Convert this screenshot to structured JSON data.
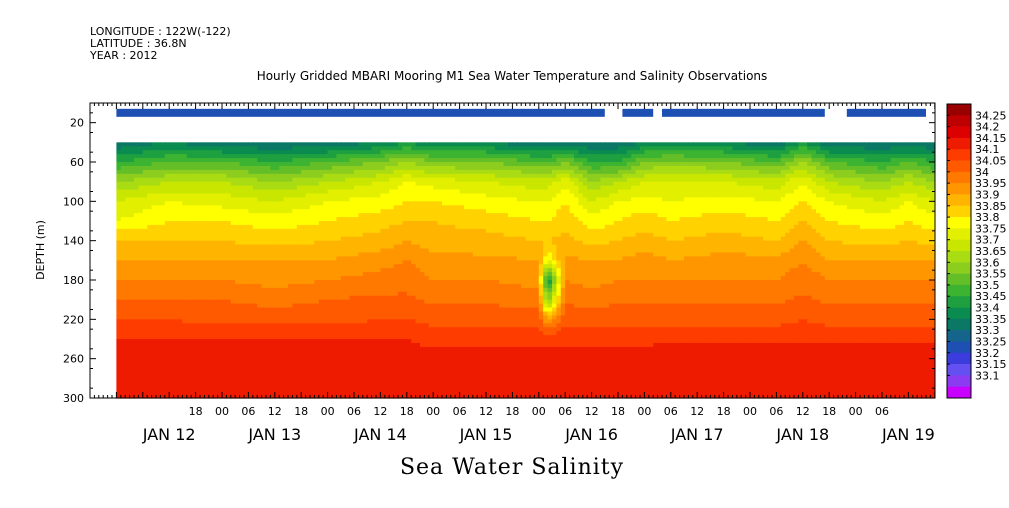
{
  "header": {
    "longitude": "LONGITUDE : 122W(-122)",
    "latitude": "LATITUDE : 36.8N",
    "year": "YEAR : 2012"
  },
  "chart_data": {
    "type": "heatmap",
    "title": "Hourly Gridded MBARI Mooring M1 Sea Water Temperature and Salinity Observations",
    "xlabel": "Sea Water Salinity",
    "ylabel": "DEPTH (m)",
    "x_range_hours": [
      -12,
      180
    ],
    "x_axis_start": "2012-01-12 06:00",
    "x_tick_labels": [
      "18",
      "00",
      "06",
      "12",
      "18",
      "00",
      "06",
      "12",
      "18",
      "00",
      "06",
      "12",
      "18",
      "00",
      "06",
      "12",
      "18",
      "00",
      "06",
      "12",
      "18",
      "00",
      "06",
      "12",
      "18",
      "00",
      "06"
    ],
    "x_day_labels": [
      "JAN 12",
      "JAN 13",
      "JAN 14",
      "JAN 15",
      "JAN 16",
      "JAN 17",
      "JAN 18",
      "JAN 19"
    ],
    "y_range": [
      300,
      0
    ],
    "y_ticks": [
      20,
      60,
      100,
      140,
      180,
      220,
      260,
      300
    ],
    "surface_layer": {
      "depth_m": 10,
      "value": 33.25,
      "gaps_hours": [
        [
          105,
          109
        ],
        [
          116,
          118
        ],
        [
          155,
          160
        ],
        [
          178,
          183
        ]
      ]
    },
    "sub_surface_data_top_depth_m": 40,
    "data_start_hours": -6,
    "contour_levels": [
      33.1,
      33.15,
      33.2,
      33.25,
      33.3,
      33.35,
      33.4,
      33.45,
      33.5,
      33.55,
      33.6,
      33.65,
      33.7,
      33.75,
      33.8,
      33.85,
      33.9,
      33.95,
      34,
      34.05,
      34.1,
      34.15,
      34.2,
      34.25
    ],
    "colorbar_labels": [
      "34.25",
      "34.2",
      "34.15",
      "34.1",
      "34.05",
      "34",
      "33.95",
      "33.9",
      "33.85",
      "33.8",
      "33.75",
      "33.7",
      "33.65",
      "33.6",
      "33.55",
      "33.5",
      "33.45",
      "33.4",
      "33.35",
      "33.3",
      "33.25",
      "33.2",
      "33.15",
      "33.1"
    ],
    "colorbar_colors": [
      "#9b0000",
      "#be0000",
      "#dc0000",
      "#ee1b00",
      "#ff3c00",
      "#ff5a00",
      "#ff7800",
      "#ff9600",
      "#ffb400",
      "#ffd200",
      "#ffff00",
      "#e2f000",
      "#c8e600",
      "#aadc14",
      "#8ccd1e",
      "#64be28",
      "#3cb432",
      "#1ea041",
      "#0a8c50",
      "#0a7864",
      "#14648c",
      "#1e50b4",
      "#3c3cdc",
      "#6450f0",
      "#8c3cf0",
      "#c800ff"
    ],
    "profile_key_hours": [
      -6,
      6,
      18,
      30,
      42,
      54,
      60,
      66,
      78,
      90,
      92,
      96,
      102,
      108,
      114,
      120,
      132,
      144,
      150,
      156,
      168,
      174,
      180
    ],
    "profile_key_depth_m": [
      40,
      60,
      80,
      100,
      120,
      140,
      160,
      180,
      200,
      220,
      240,
      260,
      280,
      300
    ],
    "profile_values": [
      [
        33.35,
        33.5,
        33.65,
        33.75,
        33.8,
        33.9,
        33.95,
        34.0,
        34.05,
        34.1,
        34.15,
        34.18,
        34.18,
        34.15
      ],
      [
        33.4,
        33.55,
        33.7,
        33.8,
        33.85,
        33.9,
        33.95,
        34.0,
        34.05,
        34.1,
        34.15,
        34.2,
        34.2,
        34.15
      ],
      [
        33.35,
        33.55,
        33.7,
        33.78,
        33.85,
        33.9,
        33.95,
        34.0,
        34.05,
        34.08,
        34.15,
        34.18,
        34.18,
        34.15
      ],
      [
        33.35,
        33.5,
        33.65,
        33.75,
        33.82,
        33.88,
        33.95,
        33.98,
        34.03,
        34.08,
        34.15,
        34.18,
        34.18,
        34.15
      ],
      [
        33.35,
        33.55,
        33.7,
        33.8,
        33.85,
        33.9,
        33.95,
        34.0,
        34.05,
        34.08,
        34.15,
        34.18,
        34.18,
        34.15
      ],
      [
        33.4,
        33.6,
        33.75,
        33.82,
        33.88,
        33.92,
        33.98,
        34.02,
        34.06,
        34.1,
        34.15,
        34.18,
        34.18,
        34.15
      ],
      [
        33.45,
        33.65,
        33.8,
        33.85,
        33.9,
        33.95,
        34.0,
        34.03,
        34.06,
        34.1,
        34.15,
        34.18,
        34.18,
        34.15
      ],
      [
        33.4,
        33.6,
        33.78,
        33.85,
        33.9,
        33.92,
        33.97,
        34.0,
        34.04,
        34.08,
        34.13,
        34.17,
        34.17,
        34.15
      ],
      [
        33.4,
        33.6,
        33.75,
        33.82,
        33.88,
        33.92,
        33.96,
        34.0,
        34.04,
        34.08,
        34.13,
        34.17,
        34.17,
        34.15
      ],
      [
        33.35,
        33.55,
        33.72,
        33.8,
        33.85,
        33.9,
        33.95,
        33.98,
        34.03,
        34.08,
        34.14,
        34.17,
        34.17,
        34.15
      ],
      [
        33.35,
        33.55,
        33.72,
        33.8,
        33.85,
        33.9,
        33.8,
        33.4,
        33.6,
        33.95,
        34.14,
        34.17,
        34.17,
        34.15
      ],
      [
        33.35,
        33.6,
        33.78,
        33.85,
        33.88,
        33.92,
        33.96,
        34.0,
        34.04,
        34.08,
        34.14,
        34.17,
        34.17,
        34.15
      ],
      [
        33.35,
        33.5,
        33.65,
        33.75,
        33.82,
        33.88,
        33.95,
        33.98,
        34.03,
        34.08,
        34.14,
        34.17,
        34.17,
        34.15
      ],
      [
        33.35,
        33.5,
        33.7,
        33.8,
        33.85,
        33.9,
        33.95,
        34.0,
        34.04,
        34.08,
        34.14,
        34.17,
        34.17,
        34.15
      ],
      [
        33.4,
        33.6,
        33.75,
        33.82,
        33.88,
        33.92,
        33.97,
        34.0,
        34.04,
        34.08,
        34.14,
        34.17,
        34.17,
        34.15
      ],
      [
        33.4,
        33.62,
        33.75,
        33.8,
        33.85,
        33.9,
        33.95,
        34.0,
        34.04,
        34.08,
        34.14,
        34.18,
        34.18,
        34.15
      ],
      [
        33.4,
        33.6,
        33.75,
        33.82,
        33.88,
        33.92,
        33.97,
        34.0,
        34.04,
        34.08,
        34.14,
        34.18,
        34.18,
        34.15
      ],
      [
        33.35,
        33.55,
        33.72,
        33.8,
        33.85,
        33.9,
        33.96,
        34.0,
        34.04,
        34.08,
        34.14,
        34.18,
        34.18,
        34.15
      ],
      [
        33.45,
        33.65,
        33.8,
        33.85,
        33.9,
        33.95,
        34.0,
        34.03,
        34.06,
        34.1,
        34.14,
        34.18,
        34.18,
        34.15
      ],
      [
        33.35,
        33.55,
        33.7,
        33.8,
        33.85,
        33.9,
        33.95,
        34.0,
        34.04,
        34.08,
        34.14,
        34.18,
        34.18,
        34.15
      ],
      [
        33.35,
        33.5,
        33.65,
        33.75,
        33.82,
        33.88,
        33.95,
        34.0,
        34.04,
        34.08,
        34.14,
        34.18,
        34.18,
        34.15
      ],
      [
        33.35,
        33.55,
        33.7,
        33.8,
        33.85,
        33.9,
        33.95,
        34.0,
        34.04,
        34.08,
        34.14,
        34.18,
        34.18,
        34.15
      ],
      [
        33.35,
        33.5,
        33.65,
        33.75,
        33.82,
        33.88,
        33.95,
        34.0,
        34.04,
        34.08,
        34.14,
        34.18,
        34.18,
        34.15
      ]
    ]
  }
}
